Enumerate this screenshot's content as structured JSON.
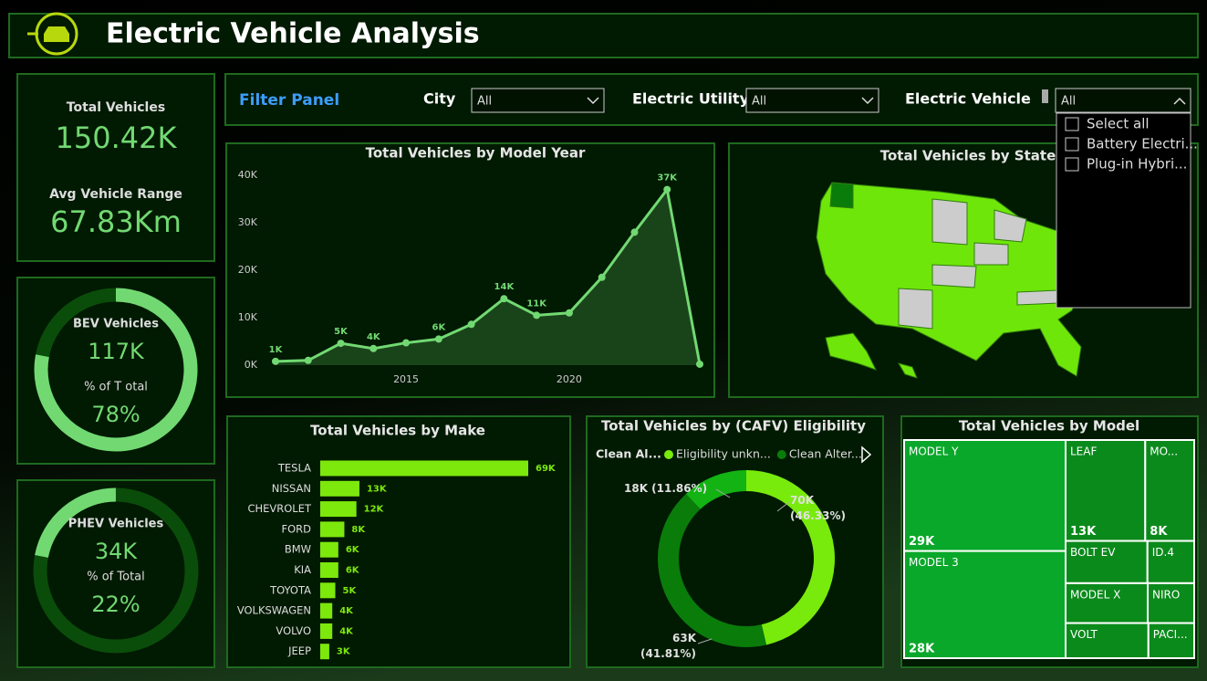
{
  "header": {
    "title": "Electric Vehicle Analysis"
  },
  "kpis": {
    "total_label": "Total Vehicles",
    "total": "150.42K",
    "range_label": "Avg Vehicle Range",
    "range": "67.83Km"
  },
  "gauges": [
    {
      "title": "BEV Vehicles",
      "value_text": "117K",
      "pct_title": "% of T otal",
      "percent": 78,
      "percent_label": "78%",
      "color": "#72d972",
      "track": "#0a4d0a"
    },
    {
      "title": "PHEV Vehicles",
      "value_text": "34K",
      "pct_title": "% of Total",
      "percent": 22,
      "percent_label": "22%",
      "color": "#72d972",
      "track": "#0a4d0a"
    }
  ],
  "filters": {
    "title": "Filter Panel",
    "items": [
      {
        "label": "City",
        "value": "All"
      },
      {
        "label": "Electric Utility",
        "value": "All"
      },
      {
        "label": "Electric Vehicle",
        "value": "All",
        "options": [
          "Select all",
          "Battery Electri...",
          "Plug-in Hybri..."
        ]
      }
    ]
  },
  "chart_data": [
    {
      "type": "line",
      "title": "Total Vehicles by Model Year",
      "color": "#72d972",
      "x": [
        2011,
        2012,
        2013,
        2014,
        2015,
        2016,
        2017,
        2018,
        2019,
        2020,
        2021,
        2022,
        2023,
        2024
      ],
      "values": [
        800,
        1000,
        4600,
        3500,
        4700,
        5500,
        8600,
        14000,
        10500,
        11000,
        18500,
        28000,
        37000,
        200
      ],
      "value_labels": [
        "1K",
        null,
        "5K",
        "4K",
        null,
        "6K",
        null,
        "14K",
        "11K",
        null,
        null,
        null,
        "37K",
        null
      ],
      "xlim": [
        2011,
        2024
      ],
      "xticks": [
        2015,
        2020
      ],
      "ylim": [
        0,
        40000
      ],
      "yticks": [
        {
          "value": 0,
          "label": "0K"
        },
        {
          "value": 10000,
          "label": "10K"
        },
        {
          "value": 20000,
          "label": "20K"
        },
        {
          "value": 30000,
          "label": "30K"
        },
        {
          "value": 40000,
          "label": "40K"
        }
      ],
      "grid": false
    },
    {
      "type": "map",
      "title": "Total Vehicles by State"
    },
    {
      "type": "hbar",
      "title": "Total Vehicles by Make",
      "color": "#7de80c",
      "categories": [
        "TESLA",
        "NISSAN",
        "CHEVROLET",
        "FORD",
        "BMW",
        "KIA",
        "TOYOTA",
        "VOLKSWAGEN",
        "VOLVO",
        "JEEP"
      ],
      "values": [
        69000,
        13000,
        12000,
        8000,
        6000,
        6000,
        5000,
        4000,
        4000,
        3000
      ],
      "value_labels": [
        "69K",
        "13K",
        "12K",
        "8K",
        "6K",
        "6K",
        "5K",
        "4K",
        "4K",
        "3K"
      ]
    },
    {
      "type": "donut",
      "title": "Total Vehicles by (CAFV) Eligibility",
      "legend_title": "Clean Al...",
      "categories": [
        "Eligibility unkn...",
        "Clean Alter...",
        null
      ],
      "values": [
        70000,
        63000,
        18000
      ],
      "value_labels": [
        "70K (46.33%)",
        "63K (41.81%)",
        "18K (11.86%)"
      ],
      "colors": [
        "#78eb0c",
        "#0a7c0a",
        "#12b312"
      ]
    },
    {
      "type": "treemap",
      "title": "Total Vehicles by Model",
      "categories": [
        "MODEL Y",
        "MODEL 3",
        "LEAF",
        "MO...",
        "BOLT EV",
        "ID.4",
        "MODEL X",
        "NIRO",
        "VOLT",
        "PACI..."
      ],
      "values": [
        29000,
        28000,
        13000,
        8000,
        5600,
        3200,
        5300,
        3000,
        4700,
        2600
      ],
      "value_labels": [
        "29K",
        "28K",
        "13K",
        "8K",
        null,
        null,
        null,
        null,
        null,
        null
      ],
      "colors": [
        "#0aa82a",
        "#0aa82a",
        "#0b8a1c",
        "#0b8a1c",
        "#0b8a1c",
        "#0b8a1c",
        "#0b8a1c",
        "#0b8a1c",
        "#0b8a1c",
        "#0b8a1c"
      ]
    }
  ]
}
